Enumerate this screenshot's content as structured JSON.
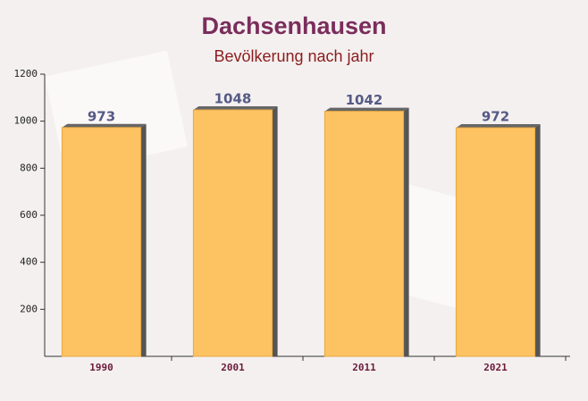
{
  "chart_data": {
    "type": "bar",
    "title": "Dachsenhausen",
    "subtitle": "Bevölkerung nach jahr",
    "categories": [
      "1990",
      "2001",
      "2011",
      "2021"
    ],
    "values": [
      973,
      1048,
      1042,
      972
    ],
    "color": "#fdc262",
    "ylim": [
      0,
      1200
    ],
    "yticks": [
      200,
      400,
      600,
      800,
      1000,
      {
        "value": 1200,
        "label": "1200"
      }
    ]
  }
}
